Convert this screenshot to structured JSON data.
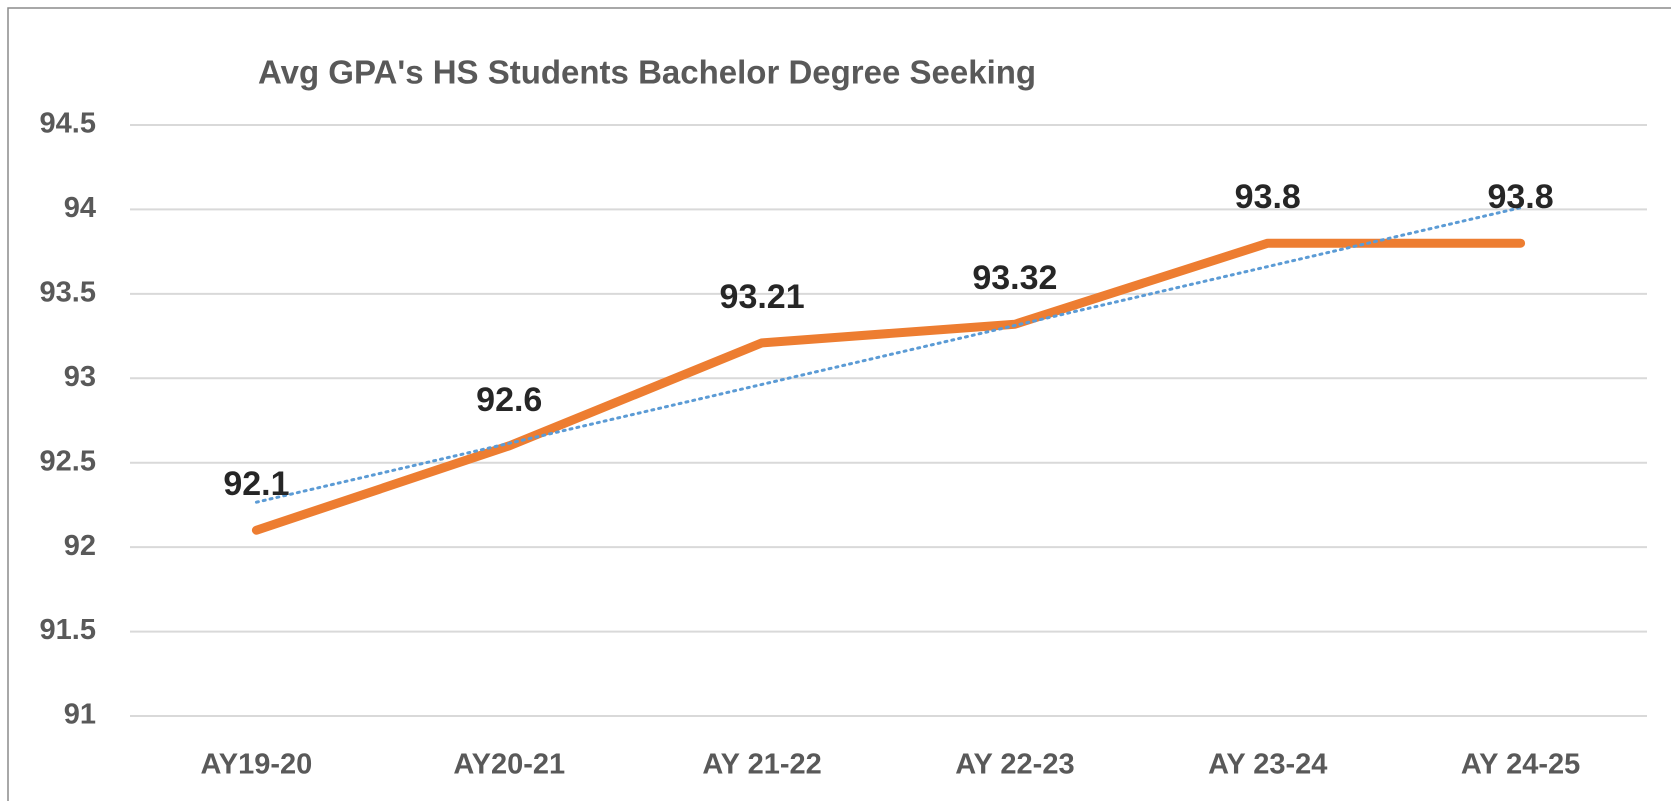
{
  "chart_data": {
    "type": "line",
    "title": "Avg GPA's HS Students Bachelor Degree Seeking",
    "categories": [
      "AY19-20",
      "AY20-21",
      "AY 21-22",
      "AY 22-23",
      "AY 23-24",
      "AY 24-25"
    ],
    "series": [
      {
        "color": "#ed7d31",
        "values": [
          92.1,
          92.6,
          93.21,
          93.32,
          93.8,
          93.8
        ]
      }
    ],
    "trendline": {
      "type": "linear",
      "color": "#5b9bd5"
    },
    "ylim": [
      91,
      94.5
    ],
    "yticks": [
      91,
      91.5,
      92,
      92.5,
      93,
      93.5,
      94,
      94.5
    ],
    "grid": true,
    "data_labels": true
  }
}
